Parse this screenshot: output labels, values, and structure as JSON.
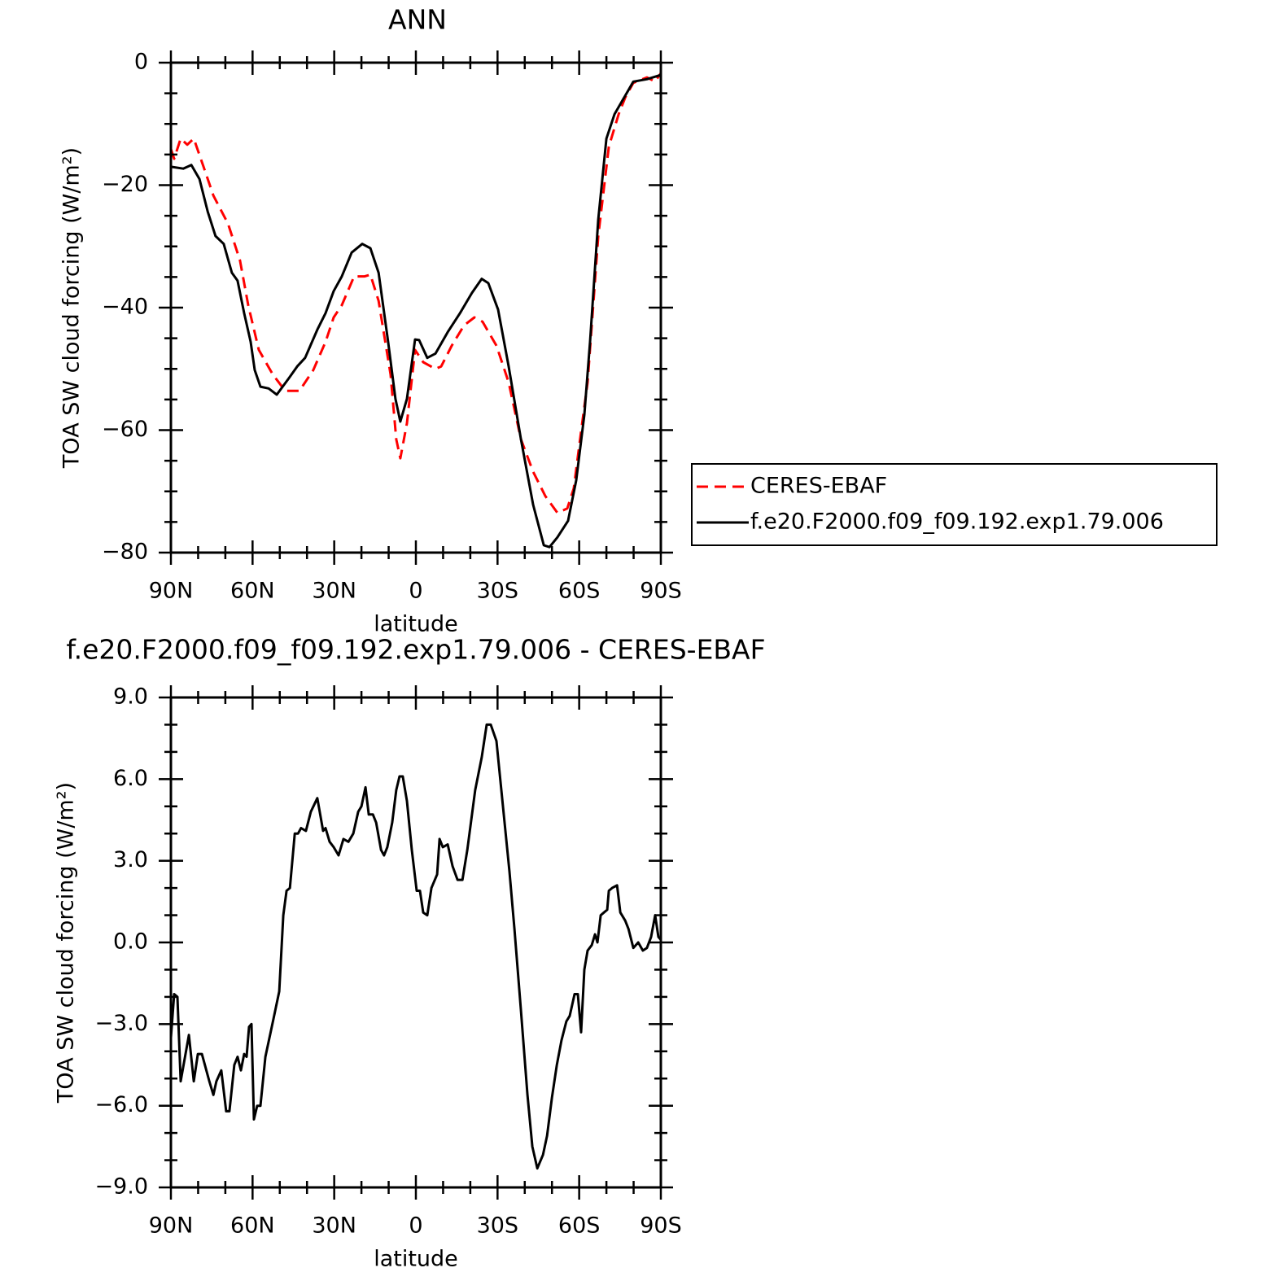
{
  "chart_data": [
    {
      "type": "line",
      "title": "ANN",
      "xlabel": "latitude",
      "ylabel": "TOA SW cloud forcing (W/m²)",
      "xlim": [
        90,
        -90
      ],
      "xticks": [
        {
          "value": 90,
          "label": "90N"
        },
        {
          "value": 60,
          "label": "60N"
        },
        {
          "value": 30,
          "label": "30N"
        },
        0,
        {
          "value": -30,
          "label": "30S"
        },
        {
          "value": -60,
          "label": "60S"
        },
        {
          "value": -90,
          "label": "90S"
        }
      ],
      "xminorticks": [
        80,
        70,
        50,
        40,
        20,
        10,
        -10,
        -20,
        -40,
        -50,
        -70,
        -80
      ],
      "ylim": [
        -80,
        0
      ],
      "yticks": [
        {
          "value": -80,
          "label": "−80"
        },
        {
          "value": -60,
          "label": "−60"
        },
        {
          "value": -40,
          "label": "−40"
        },
        {
          "value": -20,
          "label": "−20"
        },
        0
      ],
      "yminorticks": [
        -75,
        -70,
        -65,
        -55,
        -50,
        -45,
        -35,
        -30,
        -25,
        -15,
        -10,
        -5
      ],
      "legend": "right",
      "series": [
        {
          "name": "CERES-EBAF",
          "color": "#ff0000",
          "linestyle": "dashed",
          "x": [
            90,
            88.8,
            86.4,
            84,
            81.6,
            78,
            74.4,
            69,
            64.6,
            61.6,
            57.7,
            52.6,
            48,
            42.8,
            37.7,
            33.2,
            30.2,
            27.2,
            22.7,
            18.8,
            16.7,
            13.7,
            9.3,
            7.2,
            5.7,
            3.3,
            0.3,
            -2.7,
            -7.2,
            -9.3,
            -13.2,
            -17.7,
            -21.5,
            -24.5,
            -29.6,
            -34.1,
            -38.6,
            -43.1,
            -47.6,
            -52,
            -55.6,
            -58,
            -60.7,
            -63.1,
            -67,
            -70.9,
            -74.5,
            -76.9,
            -79.9,
            -84.9,
            -87.9,
            -90
          ],
          "values": [
            -14.1,
            -15.7,
            -12.4,
            -13.4,
            -12.4,
            -17,
            -21.7,
            -26.3,
            -32.3,
            -39.6,
            -46.9,
            -50.9,
            -53.6,
            -53.6,
            -50.2,
            -45.6,
            -41.6,
            -39.6,
            -34.9,
            -34.9,
            -34.6,
            -38.9,
            -50.9,
            -61.5,
            -64.6,
            -58.9,
            -46.9,
            -48.9,
            -50,
            -49.6,
            -46.2,
            -42.9,
            -41.6,
            -42.3,
            -46.2,
            -52.2,
            -61.5,
            -66.8,
            -70.8,
            -73.5,
            -72.8,
            -69.5,
            -60.2,
            -52.2,
            -28.3,
            -13.7,
            -8.4,
            -5.7,
            -3.3,
            -2.4,
            -3.1,
            -1.7
          ]
        },
        {
          "name": "f.e20.F2000.f09_f09.192.exp1.79.006",
          "color": "#000000",
          "linestyle": "solid",
          "x": [
            90,
            85.5,
            82.5,
            79.5,
            76.5,
            73.6,
            70.6,
            67.6,
            65.5,
            63.1,
            60.7,
            59.2,
            57.1,
            54.1,
            51.1,
            46.6,
            43.6,
            40.7,
            36.2,
            33.2,
            30.2,
            27.2,
            23.6,
            19.7,
            16.7,
            13.7,
            10.2,
            7.5,
            5.7,
            3.3,
            0.3,
            -1.2,
            -4.2,
            -7.2,
            -11.7,
            -16.2,
            -20.6,
            -24.2,
            -26.6,
            -30.2,
            -34.1,
            -38.6,
            -43.1,
            -47,
            -49.1,
            -52,
            -55.9,
            -58.9,
            -61.9,
            -64,
            -67,
            -70,
            -73,
            -76.9,
            -79.9,
            -84.9,
            -90
          ],
          "values": [
            -17,
            -17.3,
            -16.7,
            -19,
            -24.3,
            -28.3,
            -29.6,
            -34.3,
            -35.6,
            -40.9,
            -45.6,
            -50.2,
            -52.9,
            -53.2,
            -54.2,
            -51.5,
            -49.6,
            -48.2,
            -43.6,
            -40.9,
            -37.3,
            -34.9,
            -31,
            -29.6,
            -30.3,
            -34.3,
            -45.6,
            -54.9,
            -58.6,
            -54.9,
            -45.2,
            -45.3,
            -48.2,
            -47.5,
            -44,
            -40.9,
            -37.6,
            -35.3,
            -36,
            -40.3,
            -49.6,
            -61.5,
            -72.2,
            -78.8,
            -79.1,
            -77.5,
            -74.8,
            -68.2,
            -57.5,
            -45.6,
            -25.6,
            -12.4,
            -8.4,
            -5.4,
            -3.1,
            -2.7,
            -2
          ]
        }
      ]
    },
    {
      "type": "line",
      "title": "f.e20.F2000.f09_f09.192.exp1.79.006 - CERES-EBAF",
      "xlabel": "latitude",
      "ylabel": "TOA SW cloud forcing (W/m²)",
      "xlim": [
        90,
        -90
      ],
      "xticks": [
        {
          "value": 90,
          "label": "90N"
        },
        {
          "value": 60,
          "label": "60N"
        },
        {
          "value": 30,
          "label": "30N"
        },
        0,
        {
          "value": -30,
          "label": "30S"
        },
        {
          "value": -60,
          "label": "60S"
        },
        {
          "value": -90,
          "label": "90S"
        }
      ],
      "xminorticks": [
        80,
        70,
        50,
        40,
        20,
        10,
        -10,
        -20,
        -40,
        -50,
        -70,
        -80
      ],
      "ylim": [
        -9,
        9
      ],
      "yticks": [
        {
          "value": -9,
          "label": "−9.0"
        },
        {
          "value": -6,
          "label": "−6.0"
        },
        {
          "value": -3,
          "label": "−3.0"
        },
        {
          "value": 0,
          "label": "0.0"
        },
        {
          "value": 3,
          "label": "3.0"
        },
        {
          "value": 6,
          "label": "6.0"
        },
        {
          "value": 9,
          "label": "9.0"
        }
      ],
      "yminorticks": [
        -8,
        -7,
        -5,
        -4,
        -2,
        -1,
        1,
        2,
        4,
        5,
        7,
        8
      ],
      "series": [
        {
          "color": "#000000",
          "linestyle": "solid",
          "x": [
            90,
            88.8,
            87.6,
            86.4,
            83.4,
            81.6,
            80.1,
            78.6,
            75.9,
            74.4,
            73.3,
            71.5,
            69.7,
            68.5,
            66.7,
            65.5,
            64.3,
            63.1,
            62.2,
            61.3,
            60.4,
            59.5,
            58.3,
            57.1,
            55.3,
            53.8,
            52.3,
            50.2,
            48.7,
            47.5,
            46.3,
            44.5,
            43.3,
            42.2,
            40.4,
            38.6,
            36.2,
            34.1,
            33.2,
            31.7,
            30.2,
            28.4,
            26.6,
            24.8,
            23,
            21.2,
            20,
            18.5,
            17.3,
            15.8,
            14.6,
            12.8,
            11.7,
            10.5,
            8.7,
            7.2,
            6,
            4.8,
            3.3,
            1.5,
            -0.3,
            -1.5,
            -2.7,
            -4.2,
            -5.7,
            -7.8,
            -8.7,
            -9.9,
            -11.7,
            -13.5,
            -15.3,
            -17.1,
            -18.9,
            -21.8,
            -24.2,
            -26,
            -27.5,
            -29.6,
            -32,
            -34.4,
            -36.2,
            -38.6,
            -41,
            -42.8,
            -44.6,
            -46.7,
            -48.2,
            -50,
            -51.8,
            -53.5,
            -55.3,
            -56.5,
            -58.3,
            -59.5,
            -60.7,
            -61.9,
            -63.1,
            -64.6,
            -65.8,
            -66.7,
            -67.9,
            -69.1,
            -70.3,
            -70.9,
            -72.1,
            -73.9,
            -75.1,
            -76.9,
            -78.1,
            -79.9,
            -81.7,
            -83.4,
            -84.9,
            -86.4,
            -87.9,
            -89.1,
            -90
          ],
          "values": [
            -3.5,
            -1.9,
            -2,
            -5.1,
            -3.4,
            -5.1,
            -4.1,
            -4.1,
            -5.1,
            -5.6,
            -5.1,
            -4.7,
            -6.2,
            -6.2,
            -4.5,
            -4.2,
            -4.7,
            -4.1,
            -4.2,
            -3.1,
            -3,
            -6.5,
            -6,
            -6,
            -4.2,
            -3.5,
            -2.8,
            -1.8,
            1,
            1.9,
            2,
            4,
            4,
            4.2,
            4.1,
            4.8,
            5.3,
            4.1,
            4.2,
            3.7,
            3.5,
            3.2,
            3.8,
            3.7,
            4,
            4.8,
            5,
            5.7,
            4.7,
            4.7,
            4.4,
            3.4,
            3.2,
            3.5,
            4.4,
            5.6,
            6.1,
            6.1,
            5.2,
            3.4,
            1.9,
            1.9,
            1.1,
            1,
            2,
            2.5,
            3.8,
            3.5,
            3.6,
            2.8,
            2.3,
            2.3,
            3.4,
            5.6,
            6.8,
            8,
            8,
            7.4,
            5,
            2.6,
            0.5,
            -2.5,
            -5.6,
            -7.5,
            -8.3,
            -7.8,
            -7.1,
            -5.7,
            -4.5,
            -3.6,
            -2.9,
            -2.7,
            -1.9,
            -1.9,
            -3.3,
            -1,
            -0.3,
            -0.1,
            0.3,
            0,
            1,
            1.1,
            1.2,
            1.9,
            2,
            2.1,
            1.1,
            0.8,
            0.5,
            -0.2,
            0,
            -0.3,
            -0.2,
            0.2,
            1,
            0.2,
            0.1
          ]
        }
      ]
    }
  ]
}
